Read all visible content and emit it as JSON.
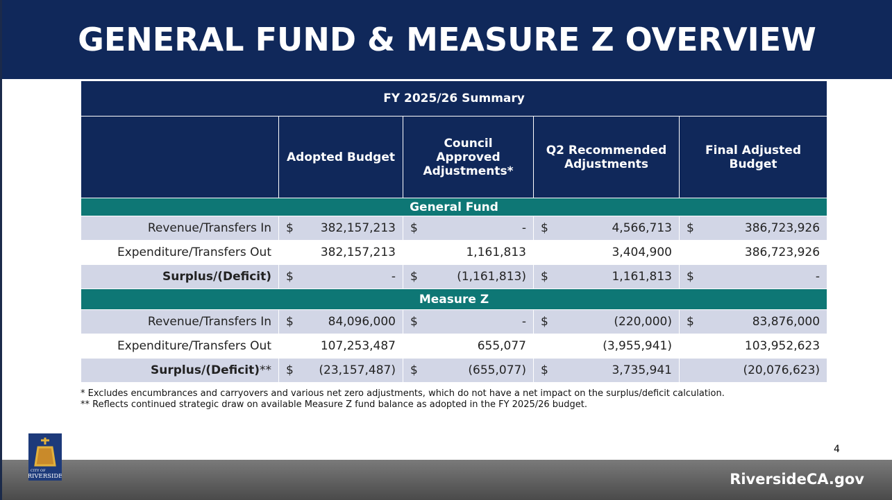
{
  "title": "GENERAL FUND & MEASURE Z OVERVIEW",
  "table": {
    "caption": "FY 2025/26 Summary",
    "headers": [
      "Adopted Budget",
      "Council Approved Adjustments*",
      "Q2 Recommended Adjustments",
      "Final Adjusted Budget"
    ],
    "sections": [
      {
        "name": "General Fund",
        "rows": [
          {
            "label": "Revenue/Transfers In",
            "cells": [
              {
                "cur": "$",
                "amt": "382,157,213"
              },
              {
                "cur": "$",
                "amt": "-"
              },
              {
                "cur": "$",
                "amt": "4,566,713"
              },
              {
                "cur": "$",
                "amt": "386,723,926"
              }
            ]
          },
          {
            "label": "Expenditure/Transfers Out",
            "cells": [
              {
                "amt": "382,157,213"
              },
              {
                "amt": "1,161,813"
              },
              {
                "amt": "3,404,900"
              },
              {
                "amt": "386,723,926"
              }
            ]
          },
          {
            "label": "Surplus/(Deficit)",
            "bold": true,
            "cells": [
              {
                "cur": "$",
                "amt": "-"
              },
              {
                "cur": "$",
                "amt": "(1,161,813)"
              },
              {
                "cur": "$",
                "amt": "1,161,813"
              },
              {
                "cur": "$",
                "amt": "-"
              }
            ]
          }
        ]
      },
      {
        "name": "Measure Z",
        "rows": [
          {
            "label": "Revenue/Transfers In",
            "cells": [
              {
                "cur": "$",
                "amt": "84,096,000"
              },
              {
                "cur": "$",
                "amt": "-"
              },
              {
                "cur": "$",
                "amt": "(220,000)"
              },
              {
                "cur": "$",
                "amt": "83,876,000"
              }
            ]
          },
          {
            "label": "Expenditure/Transfers Out",
            "cells": [
              {
                "amt": "107,253,487"
              },
              {
                "amt": "655,077"
              },
              {
                "amt": "(3,955,941)"
              },
              {
                "amt": "103,952,623"
              }
            ]
          },
          {
            "label": "Surplus/(Deficit)",
            "suffix": "**",
            "bold": true,
            "cells": [
              {
                "cur": "$",
                "amt": "(23,157,487)"
              },
              {
                "cur": "$",
                "amt": "(655,077)"
              },
              {
                "cur": "$",
                "amt": "3,735,941"
              },
              {
                "amt": "(20,076,623)"
              }
            ]
          }
        ]
      }
    ]
  },
  "footnotes": [
    "* Excludes encumbrances and carryovers and various net zero adjustments, which do not have a net impact on the surplus/deficit calculation.",
    "** Reflects continued strategic draw on available Measure Z fund balance as adopted in the FY 2025/26 budget."
  ],
  "page_number": "4",
  "logo": {
    "top": "CITY OF",
    "name": "RIVERSIDE"
  },
  "footer": "RiversideCA.gov"
}
